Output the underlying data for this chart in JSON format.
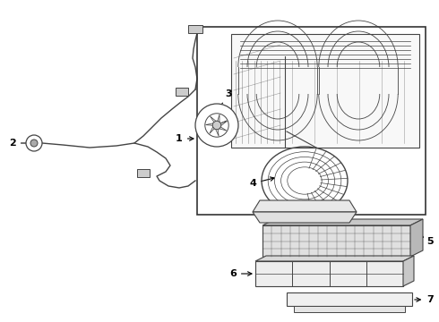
{
  "bg_color": "#ffffff",
  "line_color": "#444444",
  "fig_width": 4.9,
  "fig_height": 3.6,
  "dpi": 100
}
